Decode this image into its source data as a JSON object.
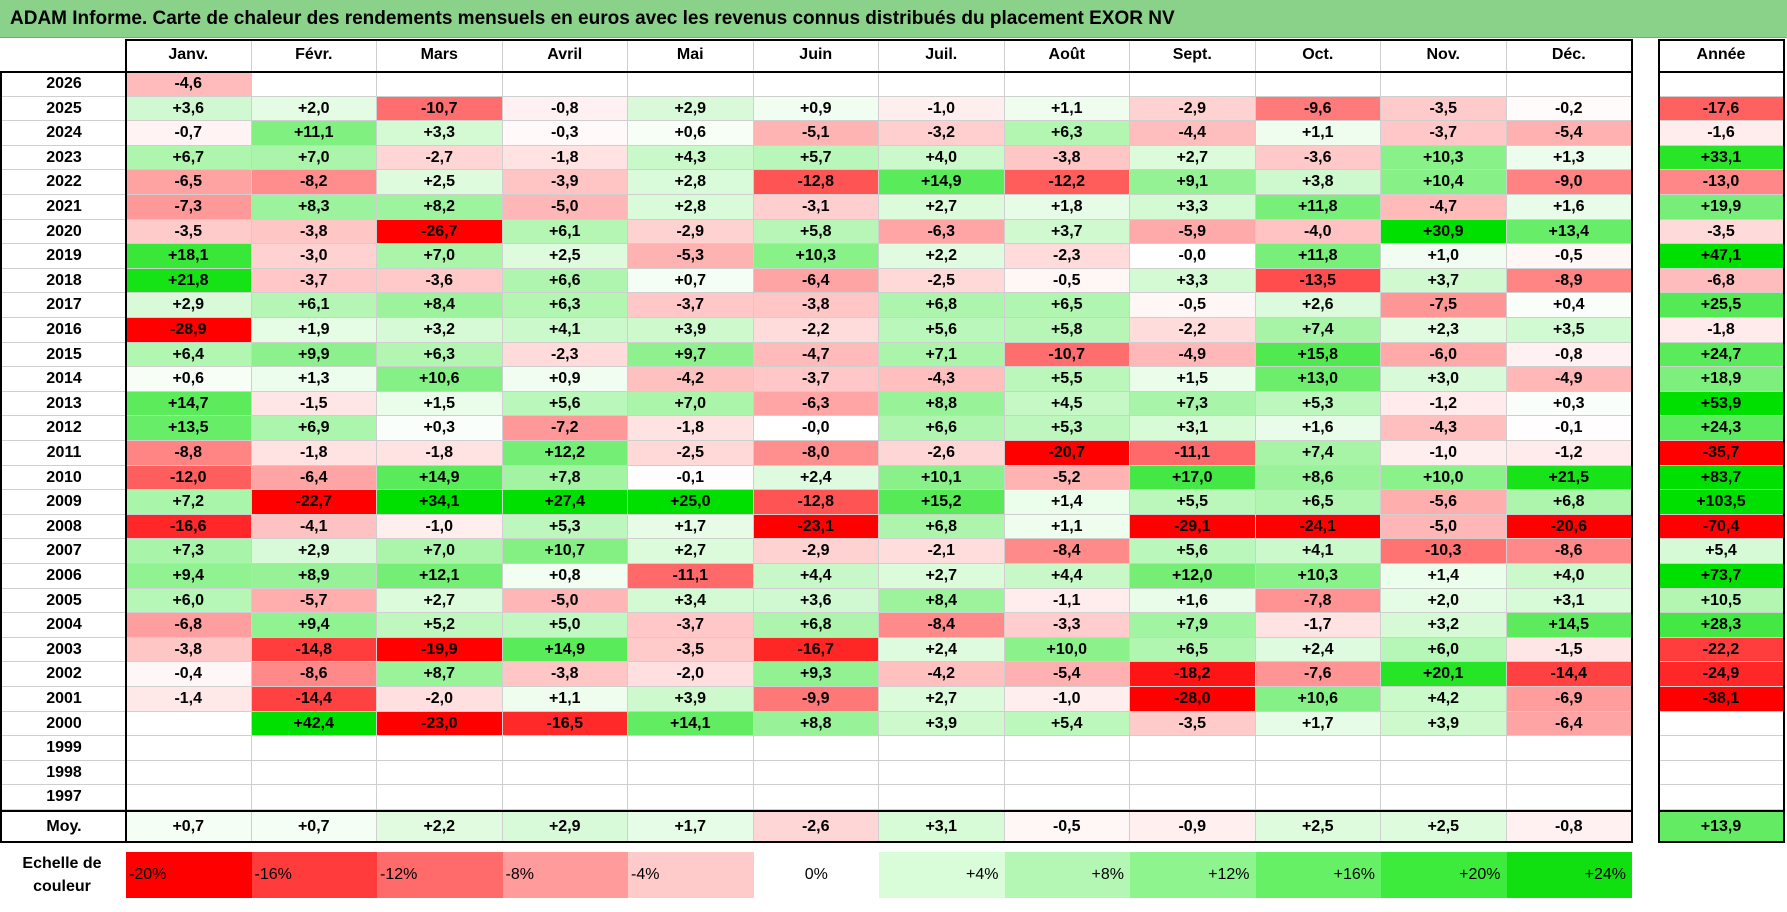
{
  "title": "ADAM Informe. Carte de chaleur des rendements mensuels en euros avec les revenus connus distribués du placement EXOR NV",
  "chart_data": {
    "type": "heatmap",
    "title": "ADAM Informe. Carte de chaleur des rendements mensuels en euros avec les revenus connus distribués du placement EXOR NV",
    "months": [
      "Janv.",
      "Févr.",
      "Mars",
      "Avril",
      "Mai",
      "Juin",
      "Juil.",
      "Août",
      "Sept.",
      "Oct.",
      "Nov.",
      "Déc."
    ],
    "annual_label": "Année",
    "rows": [
      {
        "year": "2026",
        "values": [
          "-4,6",
          "",
          "",
          "",
          "",
          "",
          "",
          "",
          "",
          "",
          "",
          ""
        ],
        "annual": ""
      },
      {
        "year": "2025",
        "values": [
          "+3,6",
          "+2,0",
          "-10,7",
          "-0,8",
          "+2,9",
          "+0,9",
          "-1,0",
          "+1,1",
          "-2,9",
          "-9,6",
          "-3,5",
          "-0,2"
        ],
        "annual": "-17,6"
      },
      {
        "year": "2024",
        "values": [
          "-0,7",
          "+11,1",
          "+3,3",
          "-0,3",
          "+0,6",
          "-5,1",
          "-3,2",
          "+6,3",
          "-4,4",
          "+1,1",
          "-3,7",
          "-5,4"
        ],
        "annual": "-1,6"
      },
      {
        "year": "2023",
        "values": [
          "+6,7",
          "+7,0",
          "-2,7",
          "-1,8",
          "+4,3",
          "+5,7",
          "+4,0",
          "-3,8",
          "+2,7",
          "-3,6",
          "+10,3",
          "+1,3"
        ],
        "annual": "+33,1"
      },
      {
        "year": "2022",
        "values": [
          "-6,5",
          "-8,2",
          "+2,5",
          "-3,9",
          "+2,8",
          "-12,8",
          "+14,9",
          "-12,2",
          "+9,1",
          "+3,8",
          "+10,4",
          "-9,0"
        ],
        "annual": "-13,0"
      },
      {
        "year": "2021",
        "values": [
          "-7,3",
          "+8,3",
          "+8,2",
          "-5,0",
          "+2,8",
          "-3,1",
          "+2,7",
          "+1,8",
          "+3,3",
          "+11,8",
          "-4,7",
          "+1,6"
        ],
        "annual": "+19,9"
      },
      {
        "year": "2020",
        "values": [
          "-3,5",
          "-3,8",
          "-26,7",
          "+6,1",
          "-2,9",
          "+5,8",
          "-6,3",
          "+3,7",
          "-5,9",
          "-4,0",
          "+30,9",
          "+13,4"
        ],
        "annual": "-3,5"
      },
      {
        "year": "2019",
        "values": [
          "+18,1",
          "-3,0",
          "+7,0",
          "+2,5",
          "-5,3",
          "+10,3",
          "+2,2",
          "-2,3",
          "-0,0",
          "+11,8",
          "+1,0",
          "-0,5"
        ],
        "annual": "+47,1"
      },
      {
        "year": "2018",
        "values": [
          "+21,8",
          "-3,7",
          "-3,6",
          "+6,6",
          "+0,7",
          "-6,4",
          "-2,5",
          "-0,5",
          "+3,3",
          "-13,5",
          "+3,7",
          "-8,9"
        ],
        "annual": "-6,8"
      },
      {
        "year": "2017",
        "values": [
          "+2,9",
          "+6,1",
          "+8,4",
          "+6,3",
          "-3,7",
          "-3,8",
          "+6,8",
          "+6,5",
          "-0,5",
          "+2,6",
          "-7,5",
          "+0,4"
        ],
        "annual": "+25,5"
      },
      {
        "year": "2016",
        "values": [
          "-28,9",
          "+1,9",
          "+3,2",
          "+4,1",
          "+3,9",
          "-2,2",
          "+5,6",
          "+5,8",
          "-2,2",
          "+7,4",
          "+2,3",
          "+3,5"
        ],
        "annual": "-1,8"
      },
      {
        "year": "2015",
        "values": [
          "+6,4",
          "+9,9",
          "+6,3",
          "-2,3",
          "+9,7",
          "-4,7",
          "+7,1",
          "-10,7",
          "-4,9",
          "+15,8",
          "-6,0",
          "-0,8"
        ],
        "annual": "+24,7"
      },
      {
        "year": "2014",
        "values": [
          "+0,6",
          "+1,3",
          "+10,6",
          "+0,9",
          "-4,2",
          "-3,7",
          "-4,3",
          "+5,5",
          "+1,5",
          "+13,0",
          "+3,0",
          "-4,9"
        ],
        "annual": "+18,9"
      },
      {
        "year": "2013",
        "values": [
          "+14,7",
          "-1,5",
          "+1,5",
          "+5,6",
          "+7,0",
          "-6,3",
          "+8,8",
          "+4,5",
          "+7,3",
          "+5,3",
          "-1,2",
          "+0,3"
        ],
        "annual": "+53,9"
      },
      {
        "year": "2012",
        "values": [
          "+13,5",
          "+6,9",
          "+0,3",
          "-7,2",
          "-1,8",
          "-0,0",
          "+6,6",
          "+5,3",
          "+3,1",
          "+1,6",
          "-4,3",
          "-0,1"
        ],
        "annual": "+24,3"
      },
      {
        "year": "2011",
        "values": [
          "-8,8",
          "-1,8",
          "-1,8",
          "+12,2",
          "-2,5",
          "-8,0",
          "-2,6",
          "-20,7",
          "-11,1",
          "+7,4",
          "-1,0",
          "-1,2"
        ],
        "annual": "-35,7"
      },
      {
        "year": "2010",
        "values": [
          "-12,0",
          "-6,4",
          "+14,9",
          "+7,8",
          "-0,1",
          "+2,4",
          "+10,1",
          "-5,2",
          "+17,0",
          "+8,6",
          "+10,0",
          "+21,5"
        ],
        "annual": "+83,7"
      },
      {
        "year": "2009",
        "values": [
          "+7,2",
          "-22,7",
          "+34,1",
          "+27,4",
          "+25,0",
          "-12,8",
          "+15,2",
          "+1,4",
          "+5,5",
          "+6,5",
          "-5,6",
          "+6,8"
        ],
        "annual": "+103,5"
      },
      {
        "year": "2008",
        "values": [
          "-16,6",
          "-4,1",
          "-1,0",
          "+5,3",
          "+1,7",
          "-23,1",
          "+6,8",
          "+1,1",
          "-29,1",
          "-24,1",
          "-5,0",
          "-20,6"
        ],
        "annual": "-70,4"
      },
      {
        "year": "2007",
        "values": [
          "+7,3",
          "+2,9",
          "+7,0",
          "+10,7",
          "+2,7",
          "-2,9",
          "-2,1",
          "-8,4",
          "+5,6",
          "+4,1",
          "-10,3",
          "-8,6"
        ],
        "annual": "+5,4"
      },
      {
        "year": "2006",
        "values": [
          "+9,4",
          "+8,9",
          "+12,1",
          "+0,8",
          "-11,1",
          "+4,4",
          "+2,7",
          "+4,4",
          "+12,0",
          "+10,3",
          "+1,4",
          "+4,0"
        ],
        "annual": "+73,7"
      },
      {
        "year": "2005",
        "values": [
          "+6,0",
          "-5,7",
          "+2,7",
          "-5,0",
          "+3,4",
          "+3,6",
          "+8,4",
          "-1,1",
          "+1,6",
          "-7,8",
          "+2,0",
          "+3,1"
        ],
        "annual": "+10,5"
      },
      {
        "year": "2004",
        "values": [
          "-6,8",
          "+9,4",
          "+5,2",
          "+5,0",
          "-3,7",
          "+6,8",
          "-8,4",
          "-3,3",
          "+7,9",
          "-1,7",
          "+3,2",
          "+14,5"
        ],
        "annual": "+28,3"
      },
      {
        "year": "2003",
        "values": [
          "-3,8",
          "-14,8",
          "-19,9",
          "+14,9",
          "-3,5",
          "-16,7",
          "+2,4",
          "+10,0",
          "+6,5",
          "+2,4",
          "+6,0",
          "-1,5"
        ],
        "annual": "-22,2"
      },
      {
        "year": "2002",
        "values": [
          "-0,4",
          "-8,6",
          "+8,7",
          "-3,8",
          "-2,0",
          "+9,3",
          "-4,2",
          "-5,4",
          "-18,2",
          "-7,6",
          "+20,1",
          "-14,4"
        ],
        "annual": "-24,9"
      },
      {
        "year": "2001",
        "values": [
          "-1,4",
          "-14,4",
          "-2,0",
          "+1,1",
          "+3,9",
          "-9,9",
          "+2,7",
          "-1,0",
          "-28,0",
          "+10,6",
          "+4,2",
          "-6,9"
        ],
        "annual": "-38,1"
      },
      {
        "year": "2000",
        "values": [
          "",
          "+42,4",
          "-23,0",
          "-16,5",
          "+14,1",
          "+8,8",
          "+3,9",
          "+5,4",
          "-3,5",
          "+1,7",
          "+3,9",
          "-6,4"
        ],
        "annual": ""
      },
      {
        "year": "1999",
        "values": [
          "",
          "",
          "",
          "",
          "",
          "",
          "",
          "",
          "",
          "",
          "",
          ""
        ],
        "annual": ""
      },
      {
        "year": "1998",
        "values": [
          "",
          "",
          "",
          "",
          "",
          "",
          "",
          "",
          "",
          "",
          "",
          ""
        ],
        "annual": ""
      },
      {
        "year": "1997",
        "values": [
          "",
          "",
          "",
          "",
          "",
          "",
          "",
          "",
          "",
          "",
          "",
          ""
        ],
        "annual": ""
      }
    ],
    "average": {
      "label": "Moy.",
      "values": [
        "+0,7",
        "+0,7",
        "+2,2",
        "+2,9",
        "+1,7",
        "-2,6",
        "+3,1",
        "-0,5",
        "-0,9",
        "+2,5",
        "+2,5",
        "-0,8"
      ],
      "annual": "+13,9"
    },
    "scale": {
      "label_line1": "Echelle de",
      "label_line2": "couleur",
      "stops": [
        "-20%",
        "-16%",
        "-12%",
        "-8%",
        "-4%",
        "0%",
        "+4%",
        "+8%",
        "+12%",
        "+16%",
        "+20%",
        "+24%"
      ],
      "stop_values": [
        -20,
        -16,
        -12,
        -8,
        -4,
        0,
        4,
        8,
        12,
        16,
        20,
        24
      ],
      "stop_colors": [
        "#ff0000",
        "#ff3b3b",
        "#ff6b6b",
        "#ff9b9b",
        "#ffcaca",
        "#ffffff",
        "#d9fcd9",
        "#b4f7b4",
        "#8ef58e",
        "#66f066",
        "#3ceb3c",
        "#10e010"
      ]
    }
  }
}
